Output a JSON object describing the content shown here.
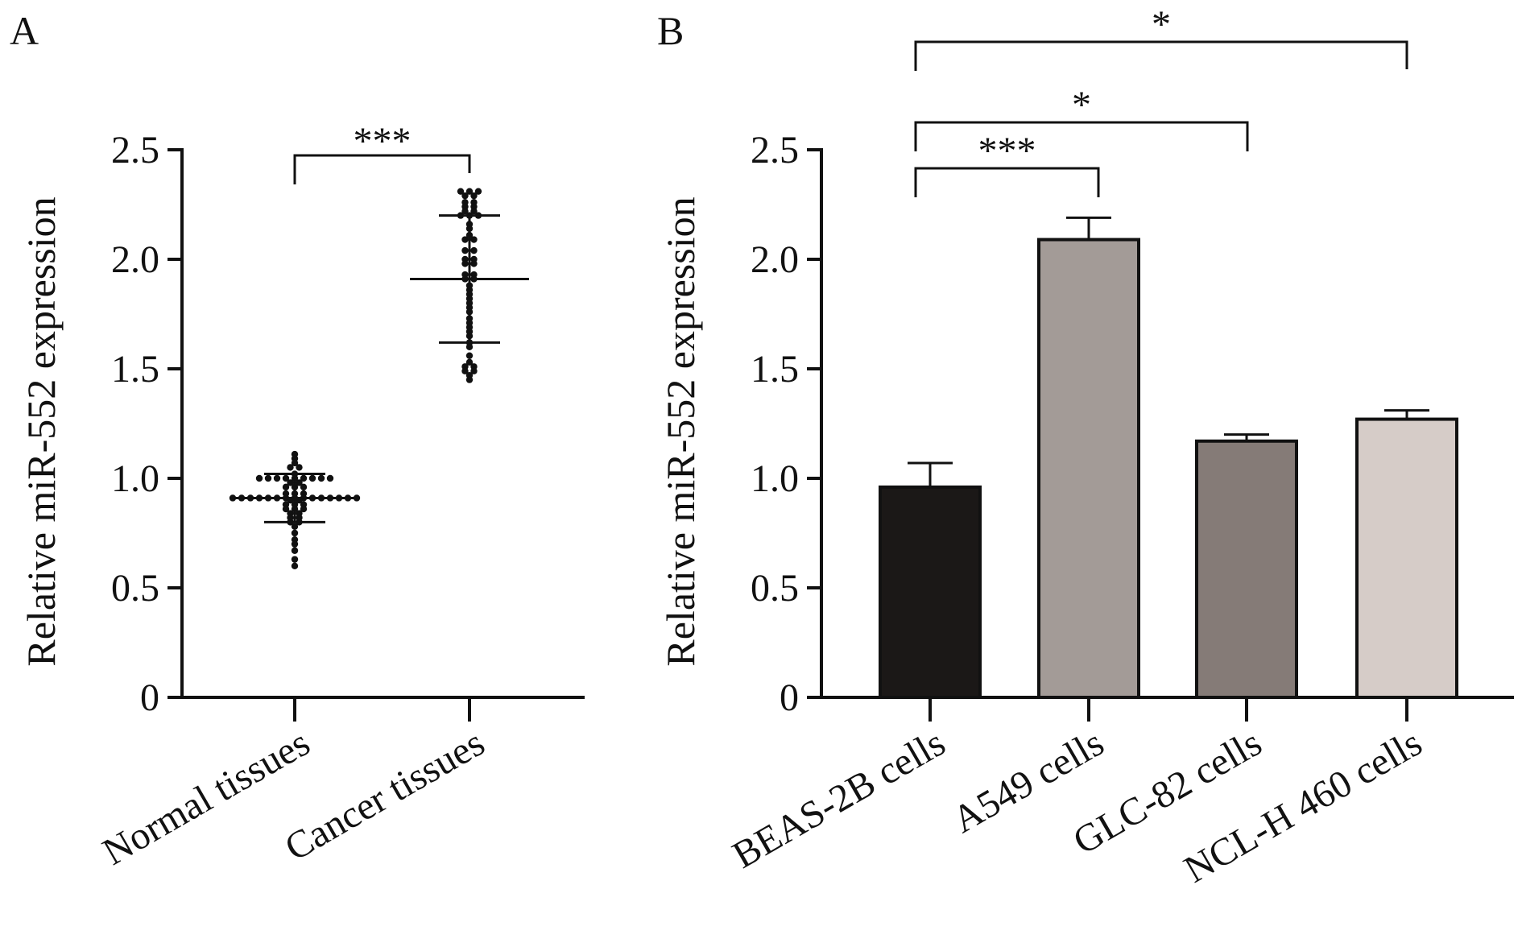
{
  "chart_data": [
    {
      "panel": "A",
      "type": "scatter",
      "ylabel": "Relative miR-552 expression",
      "ylim": [
        0,
        2.5
      ],
      "yticks": [
        "0",
        "0.5",
        "1.0",
        "1.5",
        "2.0",
        "2.5"
      ],
      "categories": [
        "Normal tissues",
        "Cancer tissues"
      ],
      "groups": [
        {
          "name": "Normal tissues",
          "mean": 0.91,
          "sd_upper": 1.02,
          "sd_lower": 0.8,
          "points": [
            1.11,
            1.09,
            1.07,
            1.05,
            1.05,
            1.02,
            1.0,
            1.0,
            1.0,
            1.0,
            1.0,
            1.0,
            1.0,
            1.0,
            1.0,
            0.98,
            0.98,
            0.96,
            0.96,
            0.96,
            0.93,
            0.93,
            0.93,
            0.91,
            0.91,
            0.91,
            0.91,
            0.91,
            0.91,
            0.91,
            0.91,
            0.91,
            0.91,
            0.91,
            0.91,
            0.91,
            0.91,
            0.91,
            0.9,
            0.9,
            0.88,
            0.88,
            0.88,
            0.86,
            0.86,
            0.86,
            0.84,
            0.84,
            0.82,
            0.82,
            0.8,
            0.8,
            0.78,
            0.75,
            0.72,
            0.7,
            0.67,
            0.63,
            0.6
          ]
        },
        {
          "name": "Cancer tissues",
          "mean": 1.91,
          "sd_upper": 2.2,
          "sd_lower": 1.62,
          "points": [
            2.31,
            2.31,
            2.31,
            2.29,
            2.29,
            2.26,
            2.26,
            2.24,
            2.24,
            2.22,
            2.22,
            2.2,
            2.2,
            2.2,
            2.16,
            2.14,
            2.11,
            2.09,
            2.09,
            2.04,
            2.04,
            2.0,
            2.0,
            1.98,
            1.98,
            1.93,
            1.93,
            1.91,
            1.91,
            1.88,
            1.86,
            1.84,
            1.82,
            1.8,
            1.78,
            1.76,
            1.73,
            1.71,
            1.69,
            1.67,
            1.65,
            1.62,
            1.6,
            1.56,
            1.53,
            1.51,
            1.51,
            1.49,
            1.49,
            1.47,
            1.45
          ]
        }
      ],
      "significance": [
        {
          "from": "Normal tissues",
          "to": "Cancer tissues",
          "label": "***"
        }
      ]
    },
    {
      "panel": "B",
      "type": "bar",
      "ylabel": "Relative miR-552 expression",
      "ylim": [
        0,
        2.5
      ],
      "yticks": [
        "0",
        "0.5",
        "1.0",
        "1.5",
        "2.0",
        "2.5"
      ],
      "categories": [
        "BEAS-2B cells",
        "A549 cells",
        "GLC-82 cells",
        "NCL-H 460 cells"
      ],
      "values": [
        0.96,
        2.09,
        1.17,
        1.27
      ],
      "errors": [
        0.11,
        0.1,
        0.03,
        0.04
      ],
      "colors": [
        "#1b1817",
        "#a39b97",
        "#857b77",
        "#d6ccc8"
      ],
      "significance": [
        {
          "from": "BEAS-2B cells",
          "to": "A549 cells",
          "label": "***"
        },
        {
          "from": "BEAS-2B cells",
          "to": "GLC-82 cells",
          "label": "*"
        },
        {
          "from": "BEAS-2B cells",
          "to": "NCL-H 460 cells",
          "label": "*"
        }
      ]
    }
  ]
}
